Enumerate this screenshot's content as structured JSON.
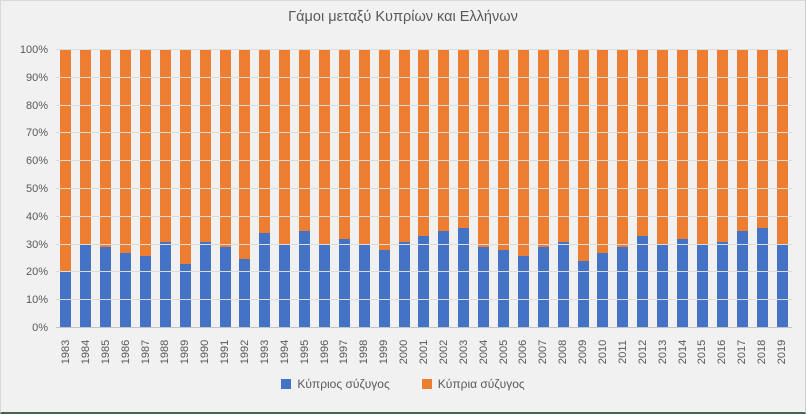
{
  "chart_data": {
    "type": "bar",
    "stacked": true,
    "percent_stacked": true,
    "title": "Γάμοι μεταξύ Κυπρίων και Ελλήνων",
    "categories": [
      "1983",
      "1984",
      "1985",
      "1986",
      "1987",
      "1988",
      "1989",
      "1990",
      "1991",
      "1992",
      "1993",
      "1994",
      "1995",
      "1996",
      "1997",
      "1998",
      "1999",
      "2000",
      "2001",
      "2002",
      "2003",
      "2004",
      "2005",
      "2006",
      "2007",
      "2008",
      "2009",
      "2010",
      "2011",
      "2012",
      "2013",
      "2014",
      "2015",
      "2016",
      "2017",
      "2018",
      "2019"
    ],
    "series": [
      {
        "name": "Κύπριος σύζυγος",
        "color": "#4472C4",
        "values": [
          20,
          30,
          29,
          27,
          26,
          31,
          23,
          31,
          29,
          25,
          34,
          30,
          35,
          30,
          32,
          30,
          28,
          31,
          33,
          35,
          36,
          29,
          28,
          26,
          29,
          31,
          24,
          27,
          29,
          33,
          30,
          32,
          30,
          31,
          35,
          36,
          30
        ]
      },
      {
        "name": "Κύπρια σύζυγος",
        "color": "#ED7D31",
        "values": [
          80,
          70,
          71,
          73,
          74,
          69,
          77,
          69,
          71,
          75,
          66,
          70,
          65,
          70,
          68,
          70,
          72,
          69,
          67,
          65,
          64,
          71,
          72,
          74,
          71,
          69,
          76,
          73,
          71,
          67,
          70,
          68,
          70,
          69,
          65,
          64,
          70
        ]
      }
    ],
    "xlabel": "",
    "ylabel": "",
    "ylim": [
      0,
      100
    ],
    "y_ticks": [
      "0%",
      "10%",
      "20%",
      "30%",
      "40%",
      "50%",
      "60%",
      "70%",
      "80%",
      "90%",
      "100%"
    ],
    "grid": true,
    "legend_position": "bottom",
    "x_label_rotation_deg": -90
  },
  "style": {
    "background": "#F1F1F1",
    "gridline_color": "#DCDCDC",
    "text_color": "#595959",
    "bottom_border_color": "#44664F"
  }
}
